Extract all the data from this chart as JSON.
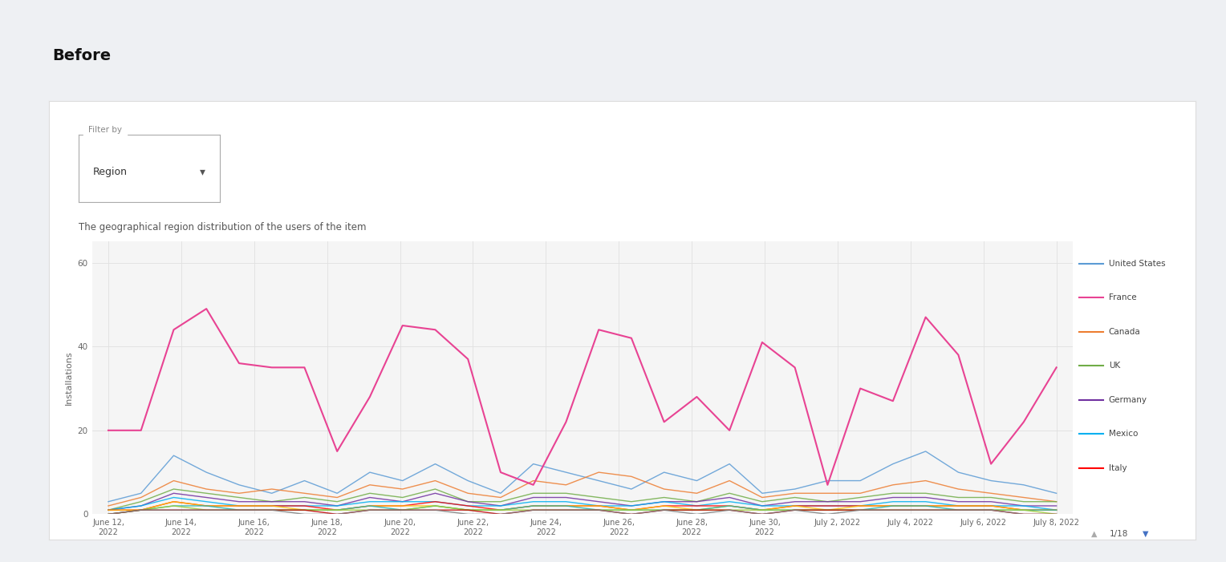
{
  "title": "Before",
  "subtitle": "The geographical region distribution of the users of the item",
  "filter_label": "Filter by",
  "filter_value": "Region",
  "ylabel": "Installations",
  "x_labels": [
    "June 12,\n2022",
    "June 14,\n2022",
    "June 16,\n2022",
    "June 18,\n2022",
    "June 20,\n2022",
    "June 22,\n2022",
    "June 24,\n2022",
    "June 26,\n2022",
    "June 28,\n2022",
    "June 30,\n2022",
    "July 2, 2022",
    "July 4, 2022",
    "July 6, 2022",
    "July 8, 2022"
  ],
  "yticks": [
    0,
    20,
    40,
    60
  ],
  "ylim": [
    0,
    65
  ],
  "legend_entries": [
    "United States",
    "France",
    "Canada",
    "UK",
    "Germany",
    "Mexico",
    "Italy"
  ],
  "legend_colors": [
    "#5b9bd5",
    "#e84393",
    "#ed7d31",
    "#70ad47",
    "#7030a0",
    "#00b0f0",
    "#ff0000"
  ],
  "series": {
    "France": [
      20,
      20,
      44,
      49,
      36,
      35,
      35,
      15,
      28,
      45,
      44,
      37,
      10,
      7,
      22,
      44,
      42,
      22,
      28,
      20,
      41,
      35,
      7,
      30,
      27,
      47,
      38,
      12,
      22,
      35
    ],
    "United States": [
      3,
      5,
      14,
      10,
      7,
      5,
      8,
      5,
      10,
      8,
      12,
      8,
      5,
      12,
      10,
      8,
      6,
      10,
      8,
      12,
      5,
      6,
      8,
      8,
      12,
      15,
      10,
      8,
      7,
      5
    ],
    "Canada": [
      2,
      4,
      8,
      6,
      5,
      6,
      5,
      4,
      7,
      6,
      8,
      5,
      4,
      8,
      7,
      10,
      9,
      6,
      5,
      8,
      4,
      5,
      5,
      5,
      7,
      8,
      6,
      5,
      4,
      3
    ],
    "UK": [
      1,
      3,
      6,
      5,
      4,
      3,
      4,
      3,
      5,
      4,
      6,
      3,
      3,
      5,
      5,
      4,
      3,
      4,
      3,
      5,
      3,
      4,
      3,
      4,
      5,
      5,
      4,
      4,
      3,
      3
    ],
    "Germany": [
      1,
      2,
      5,
      4,
      3,
      3,
      3,
      2,
      4,
      3,
      5,
      3,
      2,
      4,
      4,
      3,
      2,
      3,
      3,
      4,
      2,
      3,
      3,
      3,
      4,
      4,
      3,
      3,
      2,
      2
    ],
    "Mexico": [
      1,
      2,
      4,
      3,
      2,
      2,
      2,
      2,
      3,
      3,
      3,
      2,
      2,
      3,
      3,
      2,
      2,
      3,
      2,
      3,
      2,
      2,
      2,
      2,
      3,
      3,
      2,
      2,
      2,
      1
    ],
    "Italy": [
      1,
      1,
      3,
      2,
      2,
      2,
      2,
      1,
      2,
      2,
      3,
      2,
      1,
      2,
      2,
      2,
      1,
      2,
      2,
      2,
      1,
      2,
      2,
      2,
      2,
      2,
      2,
      2,
      1,
      1
    ],
    "Other1": [
      1,
      1,
      3,
      2,
      2,
      2,
      1,
      1,
      2,
      2,
      2,
      1,
      1,
      2,
      2,
      2,
      1,
      2,
      1,
      2,
      1,
      2,
      1,
      2,
      2,
      2,
      2,
      2,
      1,
      1
    ],
    "Other2": [
      0,
      1,
      2,
      2,
      1,
      1,
      1,
      1,
      2,
      1,
      2,
      1,
      1,
      2,
      2,
      1,
      1,
      1,
      1,
      2,
      1,
      1,
      1,
      1,
      2,
      2,
      1,
      1,
      1,
      1
    ],
    "Other3": [
      0,
      1,
      2,
      1,
      1,
      1,
      1,
      1,
      1,
      1,
      2,
      1,
      1,
      1,
      1,
      1,
      1,
      1,
      1,
      1,
      1,
      1,
      1,
      1,
      1,
      1,
      1,
      1,
      1,
      0
    ],
    "Other4": [
      0,
      1,
      1,
      1,
      1,
      1,
      1,
      0,
      1,
      1,
      1,
      1,
      0,
      1,
      1,
      1,
      0,
      1,
      1,
      1,
      0,
      1,
      1,
      1,
      1,
      1,
      1,
      1,
      0,
      0
    ],
    "Other5": [
      0,
      1,
      1,
      1,
      1,
      1,
      0,
      0,
      1,
      1,
      1,
      0,
      0,
      1,
      1,
      1,
      0,
      1,
      0,
      1,
      0,
      1,
      0,
      1,
      1,
      1,
      1,
      1,
      0,
      0
    ]
  },
  "series_colors": {
    "France": "#e84393",
    "United States": "#5b9bd5",
    "Canada": "#ed7d31",
    "UK": "#70ad47",
    "Germany": "#7030a0",
    "Mexico": "#00b0f0",
    "Italy": "#ff0000",
    "Other1": "#ffc000",
    "Other2": "#20b2aa",
    "Other3": "#9acd32",
    "Other4": "#c00000",
    "Other5": "#7f7f7f"
  },
  "bg_outer": "#eef0f3",
  "bg_card": "#ffffff",
  "bg_plot": "#f5f5f5",
  "grid_color": "#e0e0e0",
  "pagination": "1/18"
}
